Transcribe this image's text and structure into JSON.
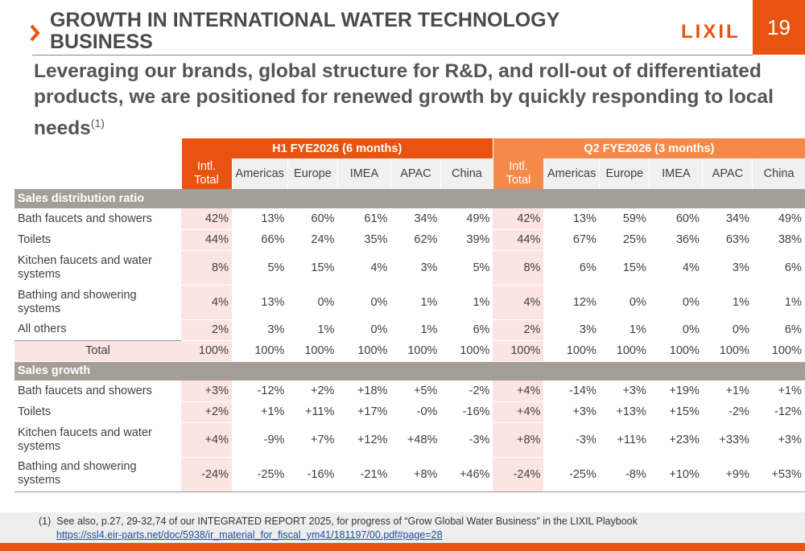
{
  "header": {
    "title": "GROWTH IN INTERNATIONAL WATER TECHNOLOGY BUSINESS",
    "logo": "LIXIL",
    "page": "19"
  },
  "subtitle": {
    "text": "Leveraging our brands, global structure for R&D, and roll-out of differentiated products, we are positioned for renewed growth by quickly responding to local needs",
    "note_ref": "(1)"
  },
  "table": {
    "groups": [
      "H1 FYE2026 (6 months)",
      "Q2 FYE2026 (3 months)"
    ],
    "columns": [
      "Intl. Total",
      "Americas",
      "Europe",
      "IMEA",
      "APAC",
      "China",
      "Intl. Total",
      "Americas",
      "Europe",
      "IMEA",
      "APAC",
      "China"
    ],
    "sections": [
      {
        "title": "Sales distribution ratio",
        "rows": [
          {
            "label": "Bath faucets and showers",
            "cells": [
              "42%",
              "13%",
              "60%",
              "61%",
              "34%",
              "49%",
              "42%",
              "13%",
              "59%",
              "60%",
              "34%",
              "49%"
            ]
          },
          {
            "label": "Toilets",
            "cells": [
              "44%",
              "66%",
              "24%",
              "35%",
              "62%",
              "39%",
              "44%",
              "67%",
              "25%",
              "36%",
              "63%",
              "38%"
            ]
          },
          {
            "label": "Kitchen faucets and water systems",
            "cells": [
              "8%",
              "5%",
              "15%",
              "4%",
              "3%",
              "5%",
              "8%",
              "6%",
              "15%",
              "4%",
              "3%",
              "6%"
            ]
          },
          {
            "label": "Bathing and showering systems",
            "cells": [
              "4%",
              "13%",
              "0%",
              "0%",
              "1%",
              "1%",
              "4%",
              "12%",
              "0%",
              "0%",
              "1%",
              "1%"
            ]
          },
          {
            "label": "All others",
            "cells": [
              "2%",
              "3%",
              "1%",
              "0%",
              "1%",
              "6%",
              "2%",
              "3%",
              "1%",
              "0%",
              "0%",
              "6%"
            ]
          },
          {
            "label": "Total",
            "cells": [
              "100%",
              "100%",
              "100%",
              "100%",
              "100%",
              "100%",
              "100%",
              "100%",
              "100%",
              "100%",
              "100%",
              "100%"
            ]
          }
        ]
      },
      {
        "title": "Sales growth",
        "rows": [
          {
            "label": "Bath faucets and showers",
            "cells": [
              "+3%",
              "-12%",
              "+2%",
              "+18%",
              "+5%",
              "-2%",
              "+4%",
              "-14%",
              "+3%",
              "+19%",
              "+1%",
              "+1%"
            ]
          },
          {
            "label": "Toilets",
            "cells": [
              "+2%",
              "+1%",
              "+11%",
              "+17%",
              "-0%",
              "-16%",
              "+4%",
              "+3%",
              "+13%",
              "+15%",
              "-2%",
              "-12%"
            ]
          },
          {
            "label": "Kitchen faucets and water systems",
            "cells": [
              "+4%",
              "-9%",
              "+7%",
              "+12%",
              "+48%",
              "-3%",
              "+8%",
              "-3%",
              "+11%",
              "+23%",
              "+33%",
              "+3%"
            ]
          },
          {
            "label": "Bathing and showering systems",
            "cells": [
              "-24%",
              "-25%",
              "-16%",
              "-21%",
              "+8%",
              "+46%",
              "-24%",
              "-25%",
              "-8%",
              "+10%",
              "+9%",
              "+53%"
            ]
          }
        ]
      }
    ]
  },
  "footnote": {
    "marker": "(1)",
    "text": "See also, p.27, 29-32,74 of our INTEGRATED REPORT 2025, for progress of “Grow Global Water Business” in the LIXIL Playbook",
    "link": "https://ssl4.eir-parts.net/doc/5938/ir_material_for_fiscal_ym41/181197/00.pdf#page=28"
  }
}
